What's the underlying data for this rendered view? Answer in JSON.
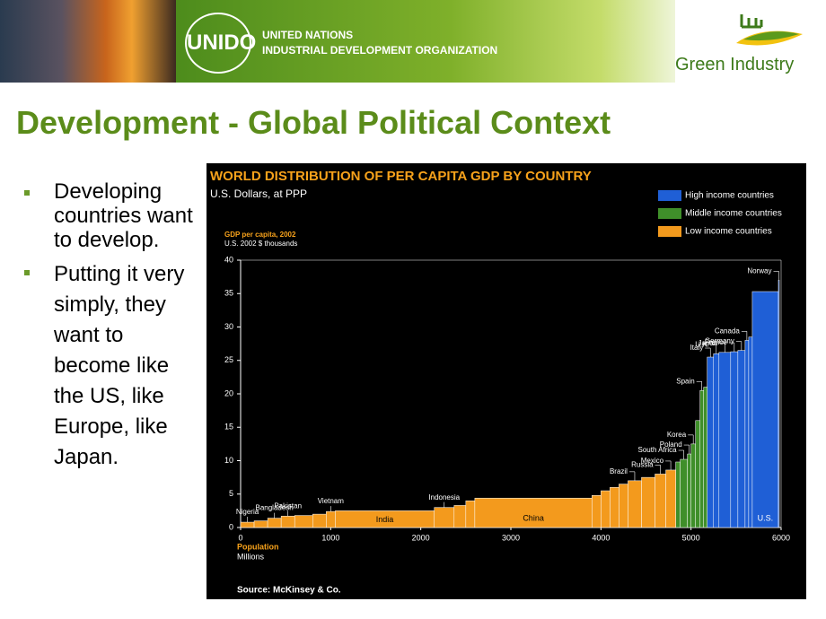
{
  "header": {
    "logo": "UNIDO",
    "org_line1": "UNITED NATIONS",
    "org_line2": "INDUSTRIAL DEVELOPMENT ORGANIZATION",
    "brand": "Green Industry"
  },
  "title": "Development - Global Political Context",
  "bullets": [
    "Developing countries want to develop.",
    "Putting it very simply, they want to become like the US, like Europe, like Japan."
  ],
  "chart_data": {
    "type": "histogram",
    "title": "WORLD DISTRIBUTION OF PER CAPITA GDP BY COUNTRY",
    "subtitle": "U.S. Dollars, at PPP",
    "y_label": "GDP per capita, 2002",
    "y_unit": "U.S. 2002 $ thousands",
    "x_label": "Population",
    "x_unit": "Millions",
    "source": "Source: McKinsey & Co.",
    "xlim": [
      0,
      6000
    ],
    "xticks": [
      0,
      1000,
      2000,
      3000,
      4000,
      5000,
      6000
    ],
    "ylim": [
      0,
      40
    ],
    "yticks": [
      0,
      5,
      10,
      15,
      20,
      25,
      30,
      35,
      40
    ],
    "legend": "top-right",
    "series": [
      {
        "name": "High income countries",
        "color": "#1f5fd6",
        "bins": [
          5180,
          5250,
          5310,
          5440,
          5520,
          5600,
          5640,
          5680,
          5970,
          5980
        ],
        "values": [
          25.5,
          26,
          26.2,
          26.3,
          26.5,
          28,
          28.5,
          35.3,
          37
        ]
      },
      {
        "name": "Middle income countries",
        "color": "#3f8f2a",
        "bins": [
          4830,
          4880,
          4960,
          5000,
          5050,
          5100,
          5140,
          5180
        ],
        "values": [
          9.8,
          10.2,
          11,
          12.5,
          16,
          20.5,
          21
        ]
      },
      {
        "name": "Low income countries",
        "color": "#f39a1d",
        "bins": [
          0,
          150,
          300,
          450,
          600,
          800,
          950,
          1050,
          2150,
          2370,
          2500,
          2600,
          3900,
          4000,
          4100,
          4200,
          4300,
          4450,
          4600,
          4720,
          4830
        ],
        "values": [
          0.8,
          1,
          1.4,
          1.7,
          1.8,
          2,
          2.4,
          2.5,
          3,
          3.3,
          4,
          4.4,
          4.8,
          5.5,
          6,
          6.5,
          7,
          7.5,
          8,
          8.6
        ]
      }
    ],
    "annotations": [
      {
        "text": "Nigeria",
        "x": 75
      },
      {
        "text": "Bangladesh",
        "x": 375
      },
      {
        "text": "Pakistan",
        "x": 525
      },
      {
        "text": "Vietnam",
        "x": 1000
      },
      {
        "text": "India",
        "x": 1600,
        "placement": "inside"
      },
      {
        "text": "Indonesia",
        "x": 2260
      },
      {
        "text": "China",
        "x": 3250,
        "placement": "inside"
      },
      {
        "text": "Brazil",
        "x": 4375
      },
      {
        "text": "Russia",
        "x": 4660
      },
      {
        "text": "Mexico",
        "x": 4775
      },
      {
        "text": "South Africa",
        "x": 4920
      },
      {
        "text": "Poland",
        "x": 4980
      },
      {
        "text": "Korea",
        "x": 5025
      },
      {
        "text": "Spain",
        "x": 5120
      },
      {
        "text": "Italy",
        "x": 5215
      },
      {
        "text": "U.K.",
        "x": 5280
      },
      {
        "text": "Japan",
        "x": 5375
      },
      {
        "text": "France",
        "x": 5480
      },
      {
        "text": "Germany",
        "x": 5560
      },
      {
        "text": "Canada",
        "x": 5620
      },
      {
        "text": "U.S.",
        "x": 5825,
        "placement": "inside"
      },
      {
        "text": "Norway",
        "x": 5975
      }
    ]
  }
}
